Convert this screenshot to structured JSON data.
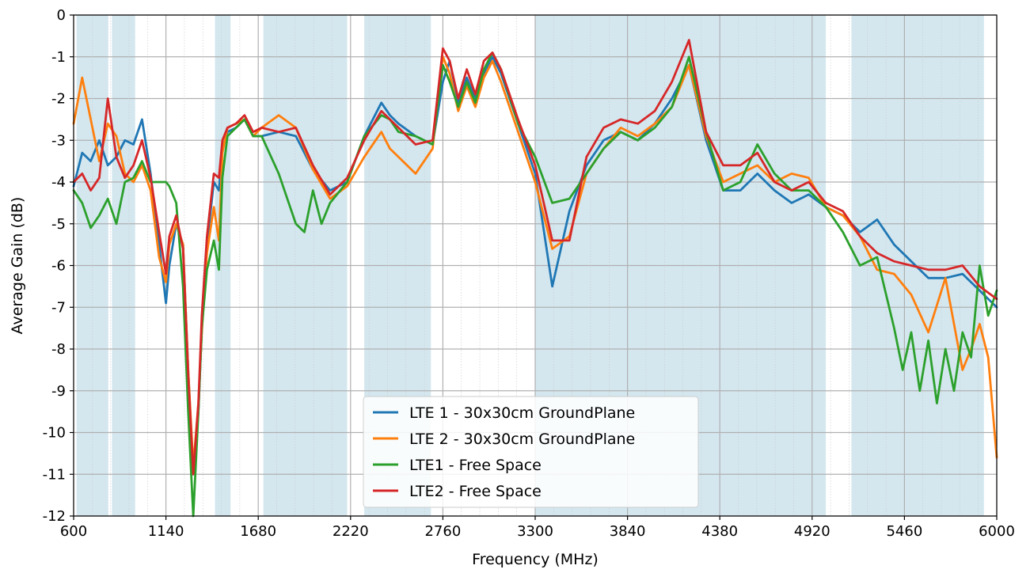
{
  "chart_data": {
    "type": "line",
    "title": "",
    "xlabel": "Frequency (MHz)",
    "ylabel": "Average Gain (dB)",
    "xlim": [
      600,
      6000
    ],
    "ylim": [
      -12,
      0
    ],
    "x_ticks": [
      600,
      1140,
      1680,
      2220,
      2760,
      3300,
      3840,
      4380,
      4920,
      5460,
      6000
    ],
    "y_ticks": [
      0,
      -1,
      -2,
      -3,
      -4,
      -5,
      -6,
      -7,
      -8,
      -9,
      -10,
      -11,
      -12
    ],
    "grid": true,
    "legend_placement": "lower center",
    "band_color": "#d4e7ef",
    "bands": [
      [
        617,
        803
      ],
      [
        824,
        960
      ],
      [
        1427,
        1518
      ],
      [
        1710,
        2200
      ],
      [
        2300,
        2690
      ],
      [
        3300,
        5000
      ],
      [
        5150,
        5925
      ]
    ],
    "series": [
      {
        "name": "LTE 1 - 30x30cm GroundPlane",
        "color": "#1f77b4",
        "x": [
          600,
          650,
          700,
          750,
          800,
          850,
          900,
          950,
          1000,
          1050,
          1100,
          1140,
          1160,
          1200,
          1240,
          1270,
          1300,
          1330,
          1350,
          1380,
          1420,
          1450,
          1470,
          1500,
          1550,
          1600,
          1650,
          1700,
          1800,
          1900,
          2000,
          2100,
          2200,
          2300,
          2400,
          2450,
          2500,
          2600,
          2700,
          2760,
          2800,
          2850,
          2900,
          2950,
          3000,
          3050,
          3100,
          3200,
          3300,
          3400,
          3500,
          3600,
          3700,
          3800,
          3900,
          4000,
          4100,
          4200,
          4300,
          4400,
          4500,
          4600,
          4700,
          4800,
          4900,
          5000,
          5100,
          5200,
          5300,
          5400,
          5500,
          5600,
          5700,
          5800,
          5900,
          6000
        ],
        "values": [
          -4.1,
          -3.3,
          -3.5,
          -3.0,
          -3.6,
          -3.4,
          -3.0,
          -3.1,
          -2.5,
          -3.8,
          -5.5,
          -6.9,
          -6.0,
          -5.0,
          -5.5,
          -8.5,
          -11.0,
          -9.5,
          -7.5,
          -5.5,
          -4.0,
          -4.2,
          -3.2,
          -2.8,
          -2.7,
          -2.5,
          -2.9,
          -2.9,
          -2.8,
          -2.9,
          -3.7,
          -4.2,
          -4.0,
          -2.9,
          -2.1,
          -2.4,
          -2.6,
          -2.9,
          -3.1,
          -1.6,
          -1.1,
          -2.1,
          -1.5,
          -2.0,
          -1.4,
          -1.0,
          -1.4,
          -2.6,
          -3.8,
          -6.5,
          -4.7,
          -3.6,
          -3.0,
          -2.8,
          -3.0,
          -2.6,
          -2.0,
          -1.2,
          -3.0,
          -4.2,
          -4.2,
          -3.8,
          -4.2,
          -4.5,
          -4.3,
          -4.6,
          -4.8,
          -5.2,
          -4.9,
          -5.5,
          -5.9,
          -6.3,
          -6.3,
          -6.2,
          -6.6,
          -7.0
        ]
      },
      {
        "name": "LTE 2 - 30x30cm GroundPlane",
        "color": "#ff7f0e",
        "x": [
          600,
          650,
          700,
          750,
          800,
          850,
          900,
          950,
          1000,
          1050,
          1100,
          1140,
          1160,
          1200,
          1240,
          1270,
          1300,
          1330,
          1350,
          1380,
          1420,
          1450,
          1470,
          1500,
          1550,
          1600,
          1650,
          1700,
          1800,
          1900,
          2000,
          2100,
          2200,
          2300,
          2400,
          2450,
          2500,
          2600,
          2700,
          2760,
          2800,
          2850,
          2900,
          2950,
          3000,
          3050,
          3100,
          3200,
          3300,
          3400,
          3500,
          3600,
          3700,
          3800,
          3900,
          4000,
          4100,
          4200,
          4300,
          4400,
          4500,
          4600,
          4700,
          4800,
          4900,
          5000,
          5100,
          5200,
          5300,
          5400,
          5500,
          5600,
          5700,
          5800,
          5850,
          5900,
          5950,
          6000
        ],
        "values": [
          -2.6,
          -1.5,
          -2.5,
          -3.5,
          -2.6,
          -2.9,
          -3.8,
          -4.0,
          -3.6,
          -4.2,
          -5.8,
          -6.4,
          -5.5,
          -5.0,
          -5.5,
          -8.5,
          -10.8,
          -9.3,
          -7.6,
          -5.7,
          -4.6,
          -5.4,
          -3.3,
          -2.7,
          -2.6,
          -2.5,
          -2.9,
          -2.7,
          -2.4,
          -2.7,
          -3.7,
          -4.4,
          -4.1,
          -3.4,
          -2.8,
          -3.2,
          -3.4,
          -3.8,
          -3.2,
          -1.0,
          -1.4,
          -2.3,
          -1.7,
          -2.2,
          -1.5,
          -1.1,
          -1.6,
          -2.8,
          -4.0,
          -5.6,
          -5.3,
          -3.8,
          -3.2,
          -2.7,
          -2.9,
          -2.6,
          -2.2,
          -1.2,
          -2.9,
          -4.0,
          -3.8,
          -3.6,
          -4.0,
          -3.8,
          -3.9,
          -4.6,
          -4.8,
          -5.3,
          -6.1,
          -6.2,
          -6.7,
          -7.6,
          -6.3,
          -8.5,
          -8.0,
          -7.4,
          -8.2,
          -10.6
        ]
      },
      {
        "name": "LTE1 - Free Space",
        "color": "#2ca02c",
        "x": [
          600,
          650,
          700,
          750,
          800,
          850,
          900,
          950,
          1000,
          1050,
          1100,
          1140,
          1160,
          1200,
          1240,
          1270,
          1300,
          1330,
          1350,
          1380,
          1420,
          1450,
          1470,
          1500,
          1550,
          1600,
          1650,
          1700,
          1800,
          1900,
          1950,
          2000,
          2050,
          2100,
          2200,
          2300,
          2400,
          2450,
          2500,
          2600,
          2700,
          2760,
          2800,
          2850,
          2900,
          2950,
          3000,
          3050,
          3100,
          3200,
          3300,
          3400,
          3500,
          3600,
          3700,
          3800,
          3900,
          4000,
          4100,
          4200,
          4300,
          4400,
          4500,
          4600,
          4700,
          4800,
          4900,
          5000,
          5100,
          5200,
          5300,
          5400,
          5450,
          5500,
          5550,
          5600,
          5650,
          5700,
          5750,
          5800,
          5850,
          5900,
          5950,
          6000
        ],
        "values": [
          -4.2,
          -4.5,
          -5.1,
          -4.8,
          -4.4,
          -5.0,
          -4.0,
          -3.9,
          -3.5,
          -4.0,
          -4.0,
          -4.0,
          -4.1,
          -4.5,
          -6.5,
          -9.5,
          -12.0,
          -9.5,
          -7.5,
          -6.1,
          -5.4,
          -6.1,
          -3.9,
          -2.9,
          -2.7,
          -2.5,
          -2.9,
          -2.9,
          -3.8,
          -5.0,
          -5.2,
          -4.2,
          -5.0,
          -4.5,
          -4.0,
          -2.9,
          -2.4,
          -2.5,
          -2.8,
          -2.9,
          -3.1,
          -1.2,
          -1.6,
          -2.2,
          -1.6,
          -2.1,
          -1.3,
          -0.9,
          -1.3,
          -2.6,
          -3.4,
          -4.5,
          -4.4,
          -3.8,
          -3.2,
          -2.8,
          -3.0,
          -2.7,
          -2.2,
          -1.0,
          -2.8,
          -4.2,
          -4.0,
          -3.1,
          -3.8,
          -4.2,
          -4.2,
          -4.6,
          -5.2,
          -6.0,
          -5.8,
          -7.5,
          -8.5,
          -7.6,
          -9.0,
          -7.8,
          -9.3,
          -8.0,
          -9.0,
          -7.6,
          -8.2,
          -6.0,
          -7.2,
          -6.6
        ]
      },
      {
        "name": "LTE2 - Free Space",
        "color": "#d62728",
        "x": [
          600,
          650,
          700,
          750,
          800,
          850,
          900,
          950,
          1000,
          1050,
          1100,
          1140,
          1160,
          1200,
          1240,
          1270,
          1300,
          1330,
          1350,
          1380,
          1420,
          1450,
          1470,
          1500,
          1550,
          1600,
          1650,
          1700,
          1800,
          1900,
          2000,
          2100,
          2200,
          2300,
          2400,
          2450,
          2500,
          2600,
          2700,
          2760,
          2800,
          2850,
          2900,
          2950,
          3000,
          3050,
          3100,
          3200,
          3300,
          3400,
          3500,
          3600,
          3700,
          3800,
          3900,
          4000,
          4100,
          4200,
          4300,
          4400,
          4500,
          4600,
          4700,
          4800,
          4900,
          5000,
          5100,
          5200,
          5300,
          5400,
          5500,
          5600,
          5700,
          5800,
          5900,
          6000
        ],
        "values": [
          -4.0,
          -3.8,
          -4.2,
          -3.9,
          -2.0,
          -3.4,
          -3.9,
          -3.6,
          -3.0,
          -3.9,
          -5.2,
          -6.2,
          -5.3,
          -4.8,
          -5.6,
          -8.6,
          -11.0,
          -9.3,
          -7.2,
          -5.3,
          -3.8,
          -3.9,
          -3.0,
          -2.7,
          -2.6,
          -2.4,
          -2.8,
          -2.7,
          -2.8,
          -2.7,
          -3.6,
          -4.3,
          -3.9,
          -3.0,
          -2.3,
          -2.5,
          -2.7,
          -3.1,
          -3.0,
          -0.8,
          -1.1,
          -2.0,
          -1.3,
          -1.9,
          -1.1,
          -0.9,
          -1.3,
          -2.5,
          -3.6,
          -5.4,
          -5.4,
          -3.4,
          -2.7,
          -2.5,
          -2.6,
          -2.3,
          -1.6,
          -0.6,
          -2.8,
          -3.6,
          -3.6,
          -3.3,
          -4.0,
          -4.2,
          -4.0,
          -4.5,
          -4.7,
          -5.3,
          -5.7,
          -5.9,
          -6.0,
          -6.1,
          -6.1,
          -6.0,
          -6.5,
          -6.8
        ]
      }
    ]
  }
}
